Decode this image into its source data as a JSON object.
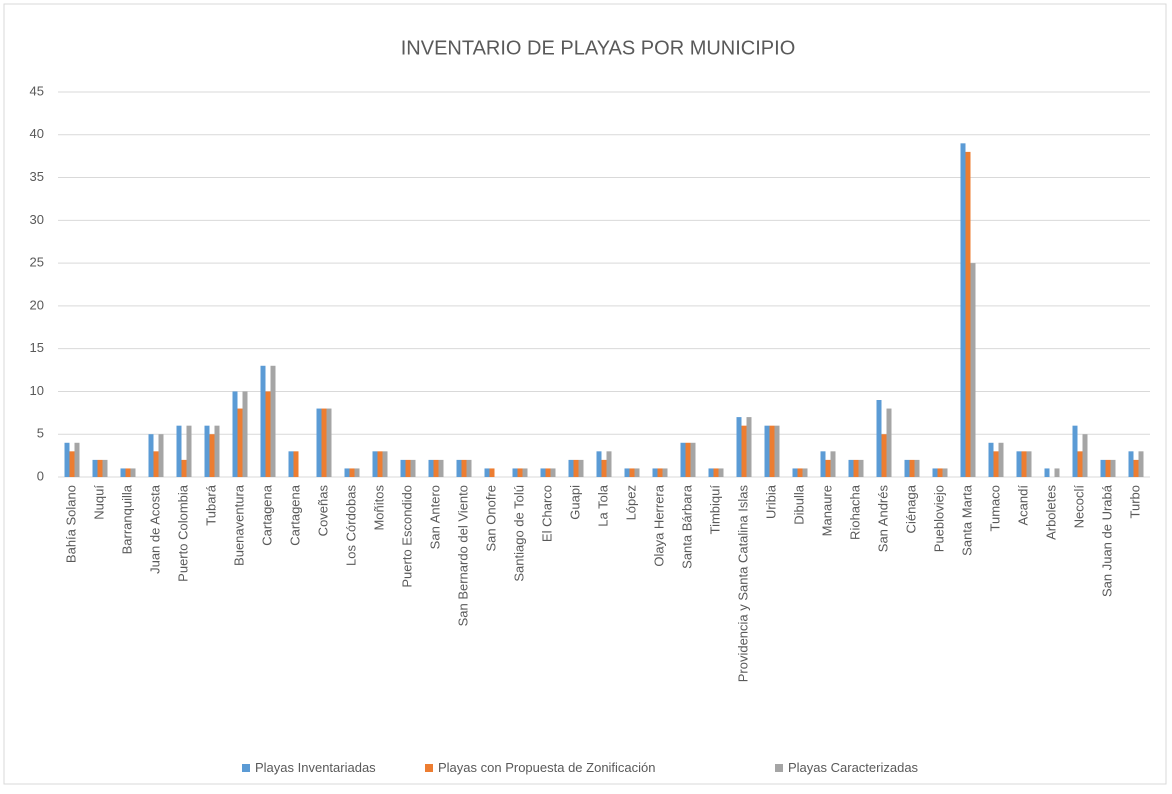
{
  "chart_data": {
    "type": "bar",
    "title": "INVENTARIO DE PLAYAS POR MUNICIPIO",
    "categories": [
      "Bahía Solano",
      "Nuquí",
      "Barranquilla",
      "Juan de Acosta",
      "Puerto Colombia",
      "Tubará",
      "Buenaventura",
      "Cartagena",
      "Cartagena",
      "Coveñas",
      "Los Córdobas",
      "Moñitos",
      "Puerto Escondido",
      "San Antero",
      "San Bernardo del Viento",
      "San Onofre",
      "Santiago de Tolú",
      "El Charco",
      "Guapi",
      "La Tola",
      "López",
      "Olaya Herrera",
      "Santa Bárbara",
      "Timbiquí",
      "Providencia y Santa Catalina Islas",
      "Uribia",
      "Dibulla",
      "Manaure",
      "Riohacha",
      "San Andrés",
      "Ciénaga",
      "Puebloviejo",
      "Santa Marta",
      "Tumaco",
      "Acandí",
      "Arboletes",
      "Necoclí",
      "San Juan de Urabá",
      "Turbo"
    ],
    "series": [
      {
        "name": "Playas Inventariadas",
        "color": "#5b9bd5",
        "values": [
          4,
          2,
          1,
          5,
          6,
          6,
          10,
          13,
          3,
          8,
          1,
          3,
          2,
          2,
          2,
          1,
          1,
          1,
          2,
          3,
          1,
          1,
          4,
          1,
          7,
          6,
          1,
          3,
          2,
          9,
          2,
          1,
          39,
          4,
          3,
          1,
          6,
          2,
          3
        ]
      },
      {
        "name": "Playas con Propuesta de Zonificación",
        "color": "#ed7d31",
        "values": [
          3,
          2,
          1,
          3,
          2,
          5,
          8,
          10,
          3,
          8,
          1,
          3,
          2,
          2,
          2,
          1,
          1,
          1,
          2,
          2,
          1,
          1,
          4,
          1,
          6,
          6,
          1,
          2,
          2,
          5,
          2,
          1,
          38,
          3,
          3,
          0,
          3,
          2,
          2
        ]
      },
      {
        "name": "Playas Caracterizadas",
        "color": "#a5a5a5",
        "values": [
          4,
          2,
          1,
          5,
          6,
          6,
          10,
          13,
          0,
          8,
          1,
          3,
          2,
          2,
          2,
          0,
          1,
          1,
          2,
          3,
          1,
          1,
          4,
          1,
          7,
          6,
          1,
          3,
          2,
          8,
          2,
          1,
          25,
          4,
          3,
          1,
          5,
          2,
          3
        ]
      }
    ],
    "ylim": [
      0,
      45
    ],
    "yticks": [
      0,
      5,
      10,
      15,
      20,
      25,
      30,
      35,
      40,
      45
    ],
    "grid": true,
    "legend": "bottom"
  }
}
